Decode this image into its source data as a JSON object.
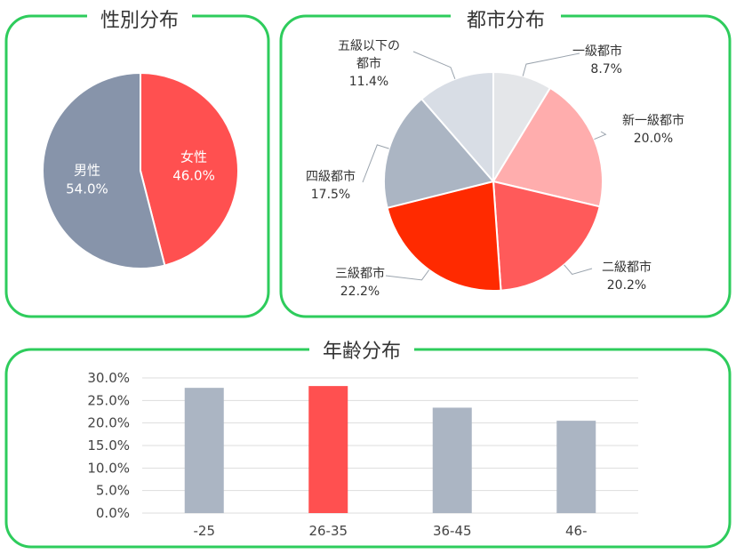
{
  "chart_data": [
    {
      "type": "pie",
      "title": "性別分布",
      "slices": [
        {
          "label": "女性",
          "value": 46.0,
          "display": "46.0%",
          "color": "#ff5050"
        },
        {
          "label": "男性",
          "value": 54.0,
          "display": "54.0%",
          "color": "#8794aa"
        }
      ]
    },
    {
      "type": "pie",
      "title": "都市分布",
      "slices": [
        {
          "label": "一級都市",
          "value": 8.7,
          "display": "8.7%",
          "color": "#e4e6e9"
        },
        {
          "label": "新一級都市",
          "value": 20.0,
          "display": "20.0%",
          "color": "#ffadad"
        },
        {
          "label": "二級都市",
          "value": 20.2,
          "display": "20.2%",
          "color": "#ff5a5a"
        },
        {
          "label": "三級都市",
          "value": 22.2,
          "display": "22.2%",
          "color": "#ff2a00"
        },
        {
          "label": "四級都市",
          "value": 17.5,
          "display": "17.5%",
          "color": "#abb5c3"
        },
        {
          "label": "五級以下の都市",
          "label_lines": [
            "五級以下の",
            "都市"
          ],
          "value": 11.4,
          "display": "11.4%",
          "color": "#d8dde5"
        }
      ]
    },
    {
      "type": "bar",
      "title": "年齢分布",
      "categories": [
        "-25",
        "26-35",
        "36-45",
        "46-"
      ],
      "values": [
        27.8,
        28.2,
        23.4,
        20.5
      ],
      "colors": [
        "#abb5c3",
        "#ff5050",
        "#abb5c3",
        "#abb5c3"
      ],
      "ylim": [
        0,
        30
      ],
      "yticks": [
        "0.0%",
        "5.0%",
        "10.0%",
        "15.0%",
        "20.0%",
        "25.0%",
        "30.0%"
      ],
      "grid": true
    }
  ]
}
